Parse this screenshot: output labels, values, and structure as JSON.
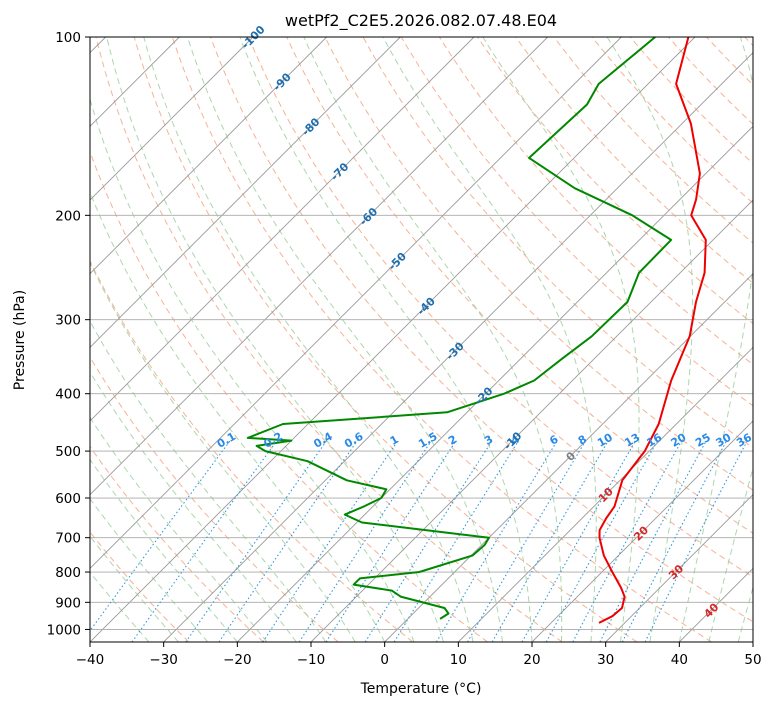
{
  "chart_data": {
    "type": "line",
    "title": "wetPf2_C2E5.2026.082.07.48.E04",
    "xlabel": "Temperature (°C)",
    "ylabel": "Pressure (hPa)",
    "xlim": [
      -40,
      50
    ],
    "ylim": [
      1050,
      100
    ],
    "y_scale": "log",
    "skew": true,
    "x_ticks": [
      "−40",
      "−30",
      "−20",
      "−10",
      "0",
      "10",
      "20",
      "30",
      "40",
      "50"
    ],
    "x_tick_values": [
      -40,
      -30,
      -20,
      -10,
      0,
      10,
      20,
      30,
      40,
      50
    ],
    "y_ticks": [
      "100",
      "200",
      "300",
      "400",
      "500",
      "600",
      "700",
      "800",
      "900",
      "1000"
    ],
    "y_tick_values": [
      100,
      200,
      300,
      400,
      500,
      600,
      700,
      800,
      900,
      1000
    ],
    "grid": true,
    "series": [
      {
        "role": "temperature",
        "color": "#ee0000",
        "points": [
          [
            100,
            -40.9
          ],
          [
            120,
            -36.2
          ],
          [
            140,
            -28.8
          ],
          [
            170,
            -20.8
          ],
          [
            188,
            -17.8
          ],
          [
            200,
            -16.3
          ],
          [
            220,
            -11.0
          ],
          [
            250,
            -6.7
          ],
          [
            280,
            -3.9
          ],
          [
            320,
            -0.1
          ],
          [
            380,
            3.4
          ],
          [
            450,
            7.6
          ],
          [
            500,
            9.4
          ],
          [
            560,
            10.3
          ],
          [
            620,
            12.8
          ],
          [
            650,
            13.3
          ],
          [
            680,
            14.0
          ],
          [
            700,
            15.0
          ],
          [
            750,
            18.0
          ],
          [
            800,
            21.4
          ],
          [
            850,
            24.7
          ],
          [
            880,
            26.4
          ],
          [
            920,
            27.6
          ],
          [
            950,
            27.4
          ],
          [
            975,
            26.5
          ]
        ]
      },
      {
        "role": "dewpoint",
        "color": "#008800",
        "points": [
          [
            100,
            -45.4
          ],
          [
            120,
            -46.7
          ],
          [
            130,
            -45.5
          ],
          [
            160,
            -46.1
          ],
          [
            180,
            -35.8
          ],
          [
            200,
            -24.3
          ],
          [
            220,
            -15.7
          ],
          [
            250,
            -15.6
          ],
          [
            280,
            -13.2
          ],
          [
            320,
            -13.4
          ],
          [
            350,
            -14.4
          ],
          [
            380,
            -15.2
          ],
          [
            400,
            -17.5
          ],
          [
            430,
            -22.7
          ],
          [
            450,
            -43.4
          ],
          [
            475,
            -46.3
          ],
          [
            480,
            -40.0
          ],
          [
            490,
            -44.0
          ],
          [
            500,
            -42.1
          ],
          [
            520,
            -35.0
          ],
          [
            560,
            -27.1
          ],
          [
            580,
            -20.5
          ],
          [
            600,
            -20.0
          ],
          [
            620,
            -21.2
          ],
          [
            640,
            -22.7
          ],
          [
            660,
            -19.3
          ],
          [
            700,
            0.0
          ],
          [
            720,
            0.4
          ],
          [
            750,
            0.2
          ],
          [
            800,
            -4.8
          ],
          [
            820,
            -12.0
          ],
          [
            840,
            -12.0
          ],
          [
            860,
            -6.0
          ],
          [
            880,
            -4.0
          ],
          [
            920,
            3.5
          ],
          [
            940,
            4.8
          ],
          [
            960,
            4.4
          ]
        ]
      }
    ],
    "isotherm_labels": [
      "-100",
      "-90",
      "-80",
      "-70",
      "-60",
      "-50",
      "-40",
      "-30",
      "-20",
      "-10",
      "0",
      "10",
      "20",
      "30",
      "40"
    ],
    "isotherm_label_values": [
      -100,
      -90,
      -80,
      -70,
      -60,
      -50,
      -40,
      -30,
      -20,
      -10,
      0,
      10,
      20,
      30,
      40
    ],
    "mixing_ratio_labels": [
      "0.1",
      "0.2",
      "0.4",
      "0.6",
      "1",
      "1.5",
      "2",
      "3",
      "4",
      "6",
      "8",
      "10",
      "13",
      "16",
      "20",
      "25",
      "30",
      "36"
    ],
    "mixing_ratio_values": [
      0.1,
      0.2,
      0.4,
      0.6,
      1,
      1.5,
      2,
      3,
      4,
      6,
      8,
      10,
      13,
      16,
      20,
      25,
      30,
      36
    ],
    "colors": {
      "temperature": "#ee0000",
      "dewpoint": "#008800",
      "isotherm": "#999999",
      "isobar": "#aaaaaa",
      "dry_adiabat": "#f4a582",
      "moist_adiabat": "#9fcf9f",
      "mixing_ratio": "#3399dd",
      "isotherm_label_cold": "#1f6fae",
      "isotherm_label_warm": "#d62728",
      "isotherm_label_zero": "#808080",
      "mixing_ratio_label": "#2a8ae6"
    }
  }
}
